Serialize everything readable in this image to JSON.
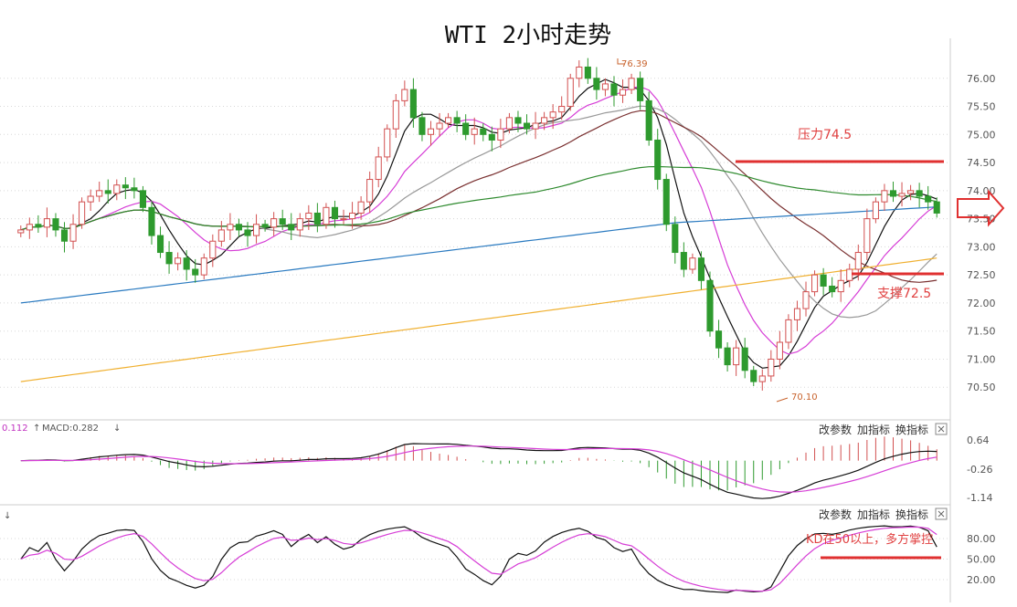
{
  "chart_data": [
    {
      "type": "candlestick",
      "title": "WTI 2小时走势",
      "ylim": [
        70.0,
        76.5
      ],
      "y_ticks": [
        70.5,
        71.0,
        71.5,
        72.0,
        72.5,
        73.0,
        73.5,
        74.0,
        74.5,
        75.0,
        75.5,
        76.0
      ],
      "y_tick_labels": [
        "70.50",
        "71.00",
        "71.50",
        "72.00",
        "72.50",
        "73.00",
        "73.50",
        "74.00",
        "74.50",
        "75.00",
        "75.50",
        "76.00"
      ],
      "high_label": "76.39",
      "low_label": "70.10",
      "annotations": [
        {
          "name": "resistance",
          "text": "压力74.5",
          "value": 74.5
        },
        {
          "name": "support",
          "text": "支撑72.5",
          "value": 72.5
        }
      ],
      "colors": {
        "up": "#d25050",
        "down": "#2e9a2e",
        "ma5": "#111111",
        "ma10": "#d63dd6",
        "ma20": "#999999",
        "ma30": "#7a3030",
        "ma60": "#2e8a2e",
        "ma120": "#2a7ac0",
        "ma250": "#f0b030",
        "resistance": "#e03030",
        "grid": "#d8d8d8"
      },
      "close": [
        73.3,
        73.4,
        73.35,
        73.5,
        73.3,
        73.1,
        73.4,
        73.8,
        73.9,
        74.0,
        73.95,
        74.1,
        74.05,
        74.0,
        73.7,
        73.2,
        72.9,
        72.7,
        72.8,
        72.6,
        72.5,
        72.8,
        73.1,
        73.3,
        73.4,
        73.3,
        73.2,
        73.4,
        73.35,
        73.5,
        73.4,
        73.3,
        73.5,
        73.6,
        73.4,
        73.7,
        73.5,
        73.5,
        73.6,
        73.8,
        74.2,
        74.6,
        75.1,
        75.6,
        75.8,
        75.3,
        75.0,
        75.1,
        75.2,
        75.3,
        75.2,
        75.0,
        75.1,
        75.0,
        74.9,
        75.1,
        75.3,
        75.2,
        75.1,
        75.2,
        75.3,
        75.4,
        75.5,
        76.0,
        76.2,
        76.0,
        75.8,
        75.9,
        75.7,
        75.8,
        76.0,
        75.6,
        74.9,
        74.2,
        73.4,
        72.9,
        72.6,
        72.8,
        72.4,
        71.5,
        71.2,
        70.9,
        71.2,
        70.8,
        70.6,
        70.7,
        71.0,
        71.3,
        71.7,
        71.9,
        72.2,
        72.5,
        72.3,
        72.2,
        72.4,
        72.6,
        72.9,
        73.5,
        73.8,
        74.0,
        73.9,
        73.95,
        74.0,
        73.9,
        73.8,
        73.6
      ],
      "macd": {
        "dif": 0.112,
        "macd": 0.282,
        "dif_label": "0.112",
        "macd_label": "MACD:0.282",
        "ticks": [
          0.64,
          -0.26,
          -1.14
        ],
        "tick_labels": [
          "0.64",
          "-0.26",
          "-1.14"
        ]
      },
      "kd": {
        "ticks": [
          80,
          50,
          20
        ],
        "tick_labels": [
          "80.00",
          "50.00",
          "20.00"
        ],
        "annotation": "KD在50以上，多方掌控",
        "threshold": 50
      },
      "controls": [
        "改参数",
        "加指标",
        "换指标"
      ]
    }
  ]
}
